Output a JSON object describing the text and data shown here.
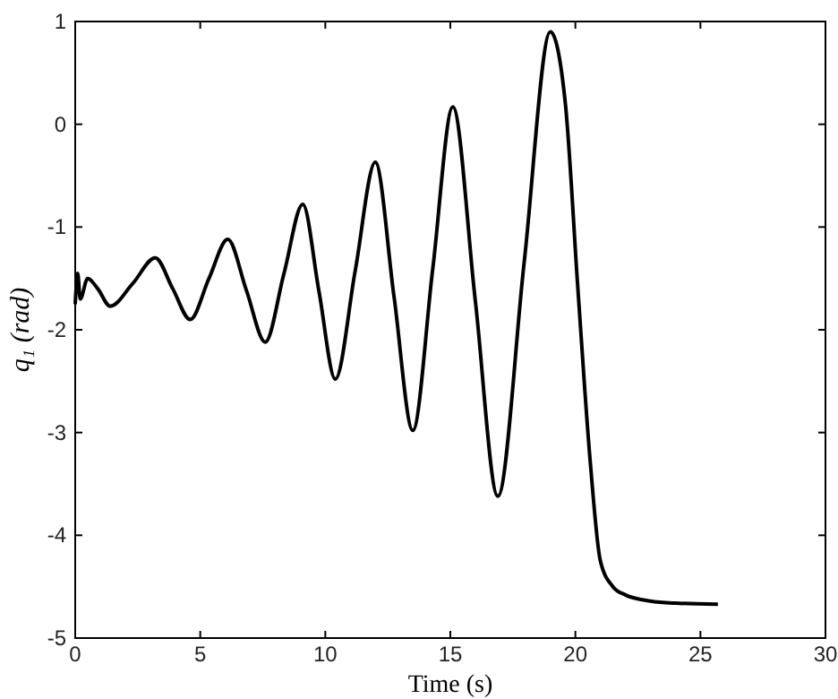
{
  "chart_data": {
    "type": "line",
    "xlabel": "Time (s)",
    "ylabel": "q₁ (rad)",
    "x": [
      0,
      0.1,
      0.2,
      0.5,
      0.9,
      1.4,
      2.3,
      3.2,
      3.9,
      4.6,
      5.35,
      6.1,
      6.85,
      7.6,
      8.35,
      9.1,
      9.75,
      10.4,
      11.2,
      12.0,
      12.75,
      13.5,
      14.3,
      15.1,
      16.0,
      16.9,
      17.95,
      19.0,
      19.6,
      20.1,
      20.6,
      21.0,
      21.5,
      22.0,
      23.0,
      24.0,
      25.7
    ],
    "series": [
      {
        "color": "#000000",
        "values": [
          -1.75,
          -1.45,
          -1.7,
          -1.5,
          -1.6,
          -1.77,
          -1.55,
          -1.3,
          -1.6,
          -1.9,
          -1.5,
          -1.12,
          -1.62,
          -2.12,
          -1.45,
          -0.78,
          -1.63,
          -2.48,
          -1.42,
          -0.37,
          -1.68,
          -2.98,
          -1.4,
          0.17,
          -1.72,
          -3.62,
          -1.35,
          0.9,
          0.2,
          -1.6,
          -3.3,
          -4.25,
          -4.5,
          -4.58,
          -4.64,
          -4.66,
          -4.67
        ]
      }
    ],
    "xlim": [
      0,
      30
    ],
    "xticks": [
      0,
      5,
      10,
      15,
      20,
      25,
      30
    ],
    "ylim": [
      -5,
      1
    ],
    "yticks": [
      -5,
      -4,
      -3,
      -2,
      -1,
      0,
      1
    ]
  }
}
